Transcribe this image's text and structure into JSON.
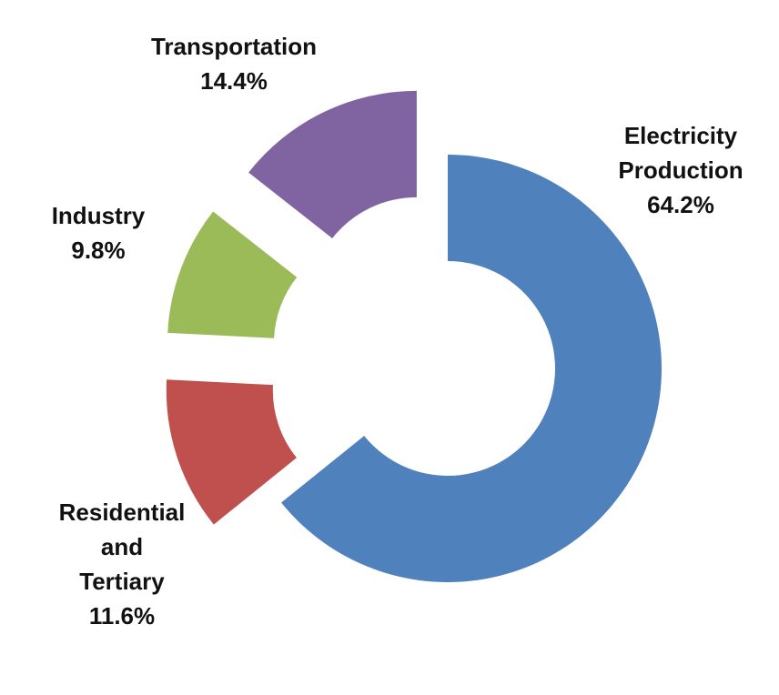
{
  "chart_data": {
    "type": "pie",
    "style": "donut, exploded",
    "slices": [
      {
        "name": "Electricity Production",
        "label_lines": [
          "Electricity",
          "Production"
        ],
        "value": 64.2,
        "value_label": "64.2%",
        "color": "#4F81BD"
      },
      {
        "name": "Residential and Tertiary",
        "label_lines": [
          "Residential",
          "and",
          "Tertiary"
        ],
        "value": 11.6,
        "value_label": "11.6%",
        "color": "#C0504D"
      },
      {
        "name": "Industry",
        "label_lines": [
          "Industry"
        ],
        "value": 9.8,
        "value_label": "9.8%",
        "color": "#9BBB59"
      },
      {
        "name": "Transportation",
        "label_lines": [
          "Transportation"
        ],
        "value": 14.4,
        "value_label": "14.4%",
        "color": "#8064A2"
      }
    ],
    "title": "",
    "legend": "none"
  }
}
